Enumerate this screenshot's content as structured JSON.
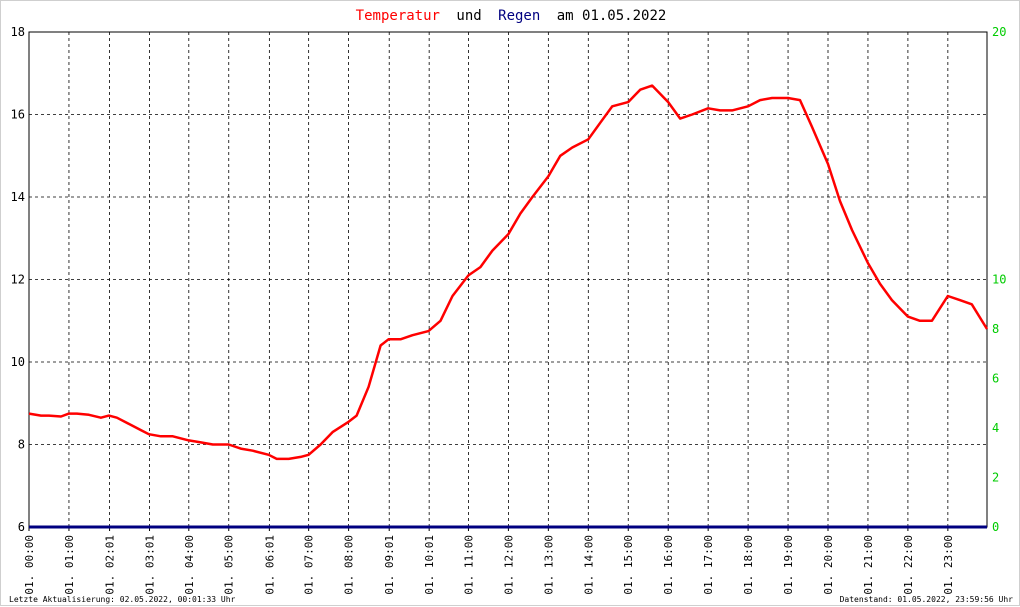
{
  "title_parts": {
    "temp": "Temperatur",
    "und": "und",
    "regen": "Regen",
    "am_date": "am 01.05.2022"
  },
  "footer": {
    "left": "Letzte Aktualisierung: 02.05.2022, 00:01:33 Uhr",
    "right": "Datenstand: 01.05.2022, 23:59:56 Uhr"
  },
  "colors": {
    "temperature": "#ff0000",
    "rain": "#000080",
    "right_axis": "#00cc00",
    "grid": "#000000"
  },
  "chart_data": {
    "type": "line",
    "title": "Temperatur und Regen am 01.05.2022",
    "y_left": {
      "min": 6,
      "max": 18,
      "ticks": [
        6,
        8,
        10,
        12,
        14,
        16,
        18
      ]
    },
    "y_right": {
      "min": 0,
      "max": 20,
      "ticks": [
        0,
        2,
        4,
        6,
        8,
        10,
        20
      ]
    },
    "x_range_hours": [
      0,
      23.98
    ],
    "x_ticks": [
      "01. 00:00",
      "01. 01:00",
      "01. 02:01",
      "01. 03:01",
      "01. 04:00",
      "01. 05:00",
      "01. 06:01",
      "01. 07:00",
      "01. 08:00",
      "01. 09:01",
      "01. 10:01",
      "01. 11:00",
      "01. 12:00",
      "01. 13:00",
      "01. 14:00",
      "01. 15:00",
      "01. 16:00",
      "01. 17:00",
      "01. 18:00",
      "01. 19:00",
      "01. 20:00",
      "01. 21:00",
      "01. 22:00",
      "01. 23:00"
    ],
    "grid": true,
    "series": [
      {
        "name": "Temperatur",
        "axis": "left",
        "x": [
          0,
          0.3,
          0.5,
          0.8,
          1,
          1.2,
          1.5,
          1.8,
          2,
          2.2,
          2.5,
          2.8,
          3,
          3.3,
          3.6,
          4,
          4.3,
          4.6,
          5,
          5.3,
          5.6,
          6,
          6.2,
          6.5,
          6.8,
          7,
          7.3,
          7.6,
          8,
          8.2,
          8.5,
          8.8,
          9,
          9.3,
          9.6,
          10,
          10.3,
          10.6,
          11,
          11.3,
          11.6,
          12,
          12.3,
          12.6,
          13,
          13.3,
          13.6,
          14,
          14.3,
          14.6,
          15,
          15.3,
          15.6,
          16,
          16.3,
          16.6,
          17,
          17.3,
          17.6,
          18,
          18.3,
          18.6,
          19,
          19.3,
          19.6,
          20,
          20.3,
          20.6,
          21,
          21.3,
          21.6,
          22,
          22.3,
          22.6,
          23,
          23.3,
          23.6,
          23.98
        ],
        "values": [
          8.75,
          8.7,
          8.7,
          8.68,
          8.75,
          8.75,
          8.72,
          8.65,
          8.7,
          8.65,
          8.5,
          8.35,
          8.25,
          8.2,
          8.2,
          8.1,
          8.05,
          8,
          8,
          7.9,
          7.85,
          7.75,
          7.65,
          7.65,
          7.7,
          7.75,
          8,
          8.3,
          8.55,
          8.7,
          9.4,
          10.4,
          10.55,
          10.55,
          10.65,
          10.75,
          11,
          11.6,
          12.1,
          12.3,
          12.7,
          13.1,
          13.6,
          14,
          14.5,
          15,
          15.2,
          15.4,
          15.8,
          16.2,
          16.3,
          16.6,
          16.7,
          16.3,
          15.9,
          16,
          16.15,
          16.1,
          16.1,
          16.2,
          16.35,
          16.4,
          16.4,
          16.35,
          15.7,
          14.8,
          13.9,
          13.2,
          12.4,
          11.9,
          11.5,
          11.1,
          11.0,
          11.0,
          11.6,
          11.5,
          11.4,
          10.8
        ]
      },
      {
        "name": "Regen",
        "axis": "right",
        "x": [
          0,
          23.98
        ],
        "values": [
          0,
          0
        ]
      }
    ]
  }
}
